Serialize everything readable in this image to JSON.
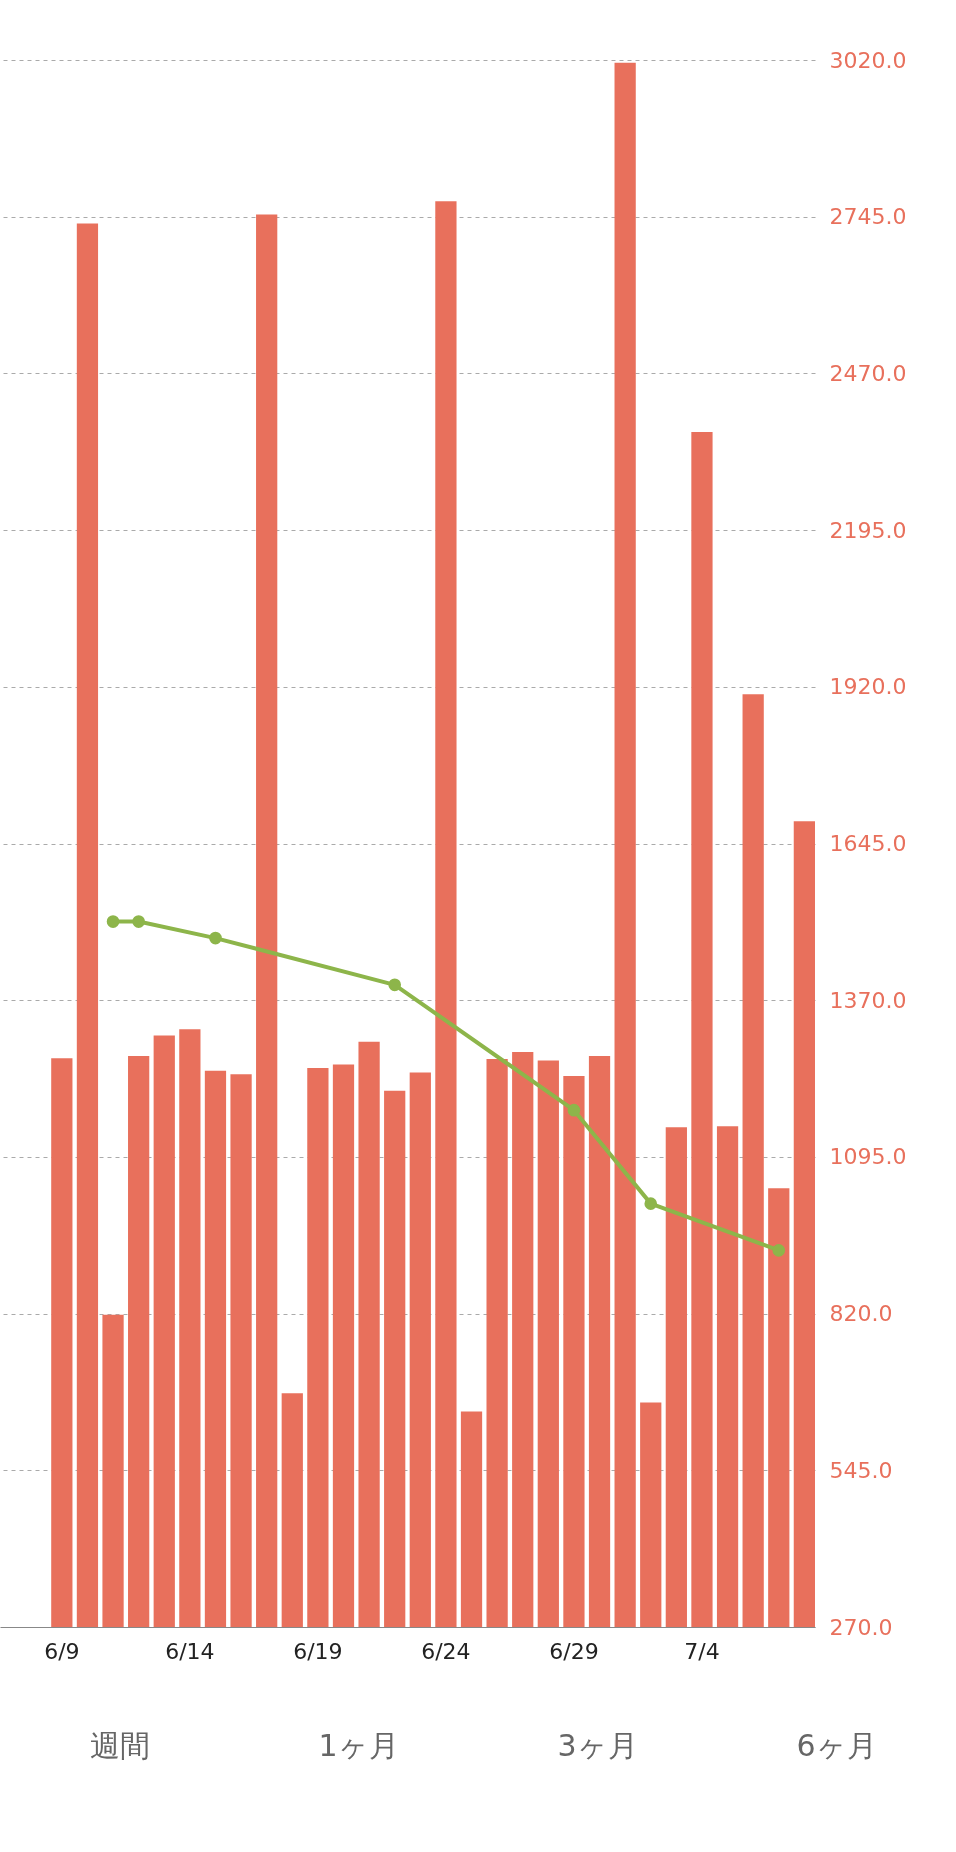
{
  "chart_data": {
    "type": "bar",
    "categories": [
      "6/9",
      null,
      null,
      null,
      null,
      "6/14",
      null,
      null,
      null,
      null,
      "6/19",
      null,
      null,
      null,
      null,
      "6/24",
      null,
      null,
      null,
      null,
      "6/29",
      null,
      null,
      null,
      null,
      "7/4",
      null,
      null,
      null,
      null
    ],
    "series": [
      {
        "color": "#e8705c",
        "values": [
          1268,
          2733,
          818,
          1272,
          1308,
          1319,
          1246,
          1240,
          2749,
          680,
          1251,
          1257,
          1297,
          1211,
          1243,
          2772,
          648,
          1267,
          1279,
          1264,
          1237,
          1272,
          3015,
          664,
          1147,
          2367,
          1149,
          1907,
          1040,
          1684
        ]
      },
      {
        "type": "line",
        "color": "#8db54a",
        "marker": "circle",
        "values": [
          null,
          null,
          1508,
          1508,
          null,
          null,
          1479,
          null,
          null,
          null,
          null,
          null,
          null,
          1397,
          null,
          null,
          null,
          null,
          null,
          null,
          1177,
          null,
          null,
          1013,
          null,
          null,
          null,
          null,
          931,
          null
        ]
      }
    ],
    "ylim": [
      270,
      3020
    ],
    "yticks": [
      {
        "value": 270,
        "label": "270.0"
      },
      {
        "value": 545,
        "label": "545.0"
      },
      {
        "value": 820,
        "label": "820.0"
      },
      {
        "value": 1095,
        "label": "1095.0"
      },
      {
        "value": 1370,
        "label": "1370.0"
      },
      {
        "value": 1645,
        "label": "1645.0"
      },
      {
        "value": 1920,
        "label": "1920.0"
      },
      {
        "value": 2195,
        "label": "2195.0"
      },
      {
        "value": 2470,
        "label": "2470.0"
      },
      {
        "value": 2745,
        "label": "2745.0"
      },
      {
        "value": 3020,
        "label": "3020.0"
      }
    ],
    "grid": "y",
    "annotations": [
      "週間",
      "1ヶ月",
      "3ヶ月",
      "6ヶ月"
    ]
  }
}
